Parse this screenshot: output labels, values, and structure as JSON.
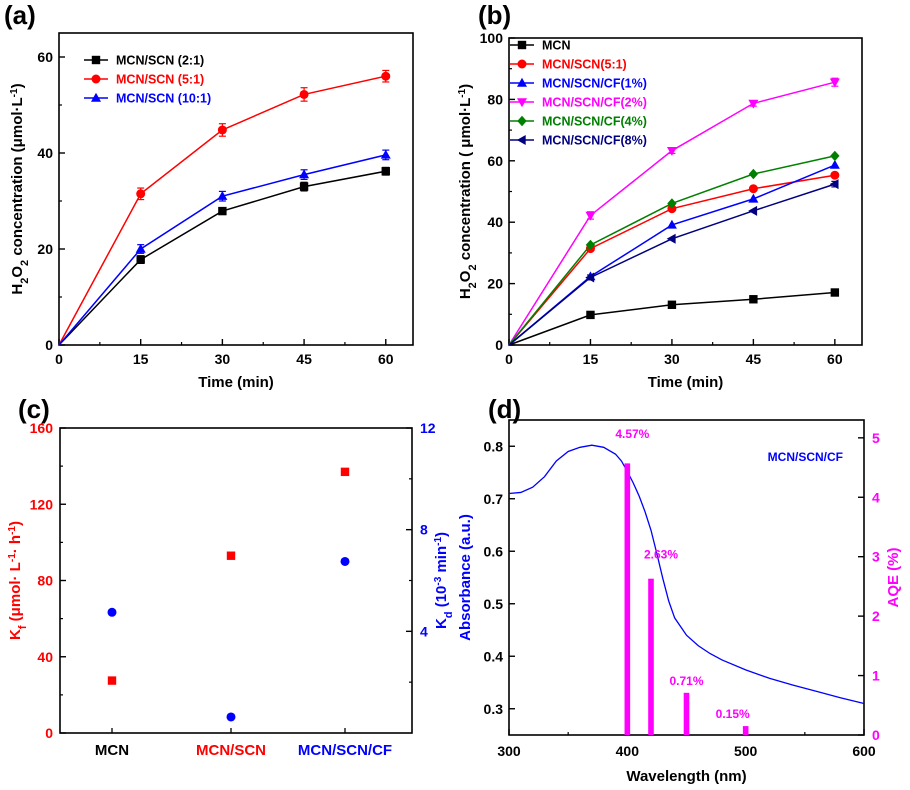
{
  "figure_labels": {
    "a": "(a)",
    "b": "(b)",
    "c": "(c)",
    "d": "(d)"
  },
  "colors": {
    "black": "#000000",
    "red": "#ff0000",
    "blue": "#0000ff",
    "magenta": "#ff00ff",
    "green": "#008000",
    "navy": "#000080"
  },
  "chart_data": [
    {
      "id": "a",
      "type": "line",
      "title": "(a)",
      "xlabel": "Time (min)",
      "ylabel_parts": [
        "H",
        "2",
        "O",
        "2",
        " concentration (μmol·L",
        "-1",
        ")"
      ],
      "x": [
        0,
        15,
        30,
        45,
        60
      ],
      "xlim": [
        0,
        65
      ],
      "ylim": [
        0,
        65
      ],
      "xticks": [
        0,
        15,
        30,
        45,
        60
      ],
      "yticks": [
        0,
        20,
        40,
        60
      ],
      "legend_position": "top-left",
      "series": [
        {
          "name": "MCN/SCN (2:1)",
          "color": "#000000",
          "marker": "square",
          "values": [
            0,
            17.8,
            27.9,
            33.0,
            36.2
          ],
          "errors": [
            0,
            0.8,
            0.7,
            0.9,
            0.8
          ]
        },
        {
          "name": "MCN/SCN (5:1)",
          "color": "#ff0000",
          "marker": "circle",
          "values": [
            0,
            31.5,
            44.8,
            52.2,
            56.0
          ],
          "errors": [
            0,
            1.2,
            1.3,
            1.4,
            1.2
          ]
        },
        {
          "name": "MCN/SCN (10:1)",
          "color": "#0000ff",
          "marker": "triangle-up",
          "values": [
            0,
            20.0,
            31.0,
            35.5,
            39.6
          ],
          "errors": [
            0,
            0.9,
            1.0,
            1.0,
            1.0
          ]
        }
      ]
    },
    {
      "id": "b",
      "type": "line",
      "title": "(b)",
      "xlabel": "Time (min)",
      "ylabel_parts": [
        "H",
        "2",
        "O",
        "2",
        " concentration ( μmol·L",
        "-1",
        ")"
      ],
      "x": [
        0,
        15,
        30,
        45,
        60
      ],
      "xlim": [
        0,
        65
      ],
      "ylim": [
        0,
        100
      ],
      "xticks": [
        0,
        15,
        30,
        45,
        60
      ],
      "yticks": [
        0,
        20,
        40,
        60,
        80,
        100
      ],
      "legend_position": "top-left",
      "series": [
        {
          "name": "MCN",
          "color": "#000000",
          "marker": "square",
          "values": [
            0,
            9.8,
            13.1,
            14.9,
            17.1
          ],
          "errors": [
            0,
            0,
            0,
            0,
            0
          ]
        },
        {
          "name": "MCN/SCN(5:1)",
          "color": "#ff0000",
          "marker": "circle",
          "values": [
            0,
            31.4,
            44.4,
            50.9,
            55.3
          ],
          "errors": [
            0,
            0,
            0,
            0,
            0
          ]
        },
        {
          "name": "MCN/SCN/CF(1%)",
          "color": "#0000ff",
          "marker": "triangle-up",
          "values": [
            0,
            22.3,
            39.1,
            47.6,
            58.6
          ],
          "errors": [
            0,
            0,
            0,
            0,
            0
          ]
        },
        {
          "name": "MCN/SCN/CF(2%)",
          "color": "#ff00ff",
          "marker": "triangle-down",
          "values": [
            0,
            42.2,
            63.3,
            78.7,
            85.6
          ],
          "errors": [
            0,
            1.2,
            0.9,
            0.9,
            1.3
          ]
        },
        {
          "name": "MCN/SCN/CF(4%)",
          "color": "#008000",
          "marker": "diamond",
          "values": [
            0,
            32.6,
            46.1,
            55.7,
            61.6
          ],
          "errors": [
            0,
            0,
            0,
            0,
            0
          ]
        },
        {
          "name": "MCN/SCN/CF(8%)",
          "color": "#000080",
          "marker": "triangle-left",
          "values": [
            0,
            22.0,
            34.6,
            43.7,
            52.4
          ],
          "errors": [
            0,
            0.8,
            0,
            0,
            0.9
          ]
        }
      ]
    },
    {
      "id": "c",
      "type": "scatter",
      "title": "(c)",
      "categories": [
        "MCN",
        "MCN/SCN",
        "MCN/SCN/CF"
      ],
      "category_colors": [
        "#000000",
        "#ff0000",
        "#0000ff"
      ],
      "left_axis": {
        "ylabel_parts": [
          "K",
          "f",
          " (μmol· L",
          "-1",
          "· h",
          "-1",
          ")"
        ],
        "ylim": [
          0,
          160
        ],
        "yticks": [
          0,
          40,
          80,
          120,
          160
        ],
        "color": "#ff0000"
      },
      "right_axis": {
        "ylabel_parts": [
          "K",
          "d",
          " (10",
          "-3",
          " min",
          "-1",
          ")"
        ],
        "ylim": [
          0,
          12
        ],
        "yticks": [
          4,
          8,
          12
        ],
        "color": "#0000ff"
      },
      "series": [
        {
          "name": "Kf",
          "axis": "left",
          "color": "#ff0000",
          "marker": "square",
          "values": [
            27.5,
            93.0,
            137.0
          ]
        },
        {
          "name": "Kd",
          "axis": "right",
          "color": "#0000ff",
          "marker": "circle",
          "values": [
            4.75,
            0.63,
            6.75
          ]
        }
      ]
    },
    {
      "id": "d",
      "type": "line+bar",
      "title": "(d)",
      "xlabel": "Wavelength (nm)",
      "annotation": "MCN/SCN/CF",
      "xlim": [
        300,
        600
      ],
      "xticks": [
        300,
        400,
        500,
        600
      ],
      "left_axis": {
        "ylabel": "Absorbance (a.u.)",
        "ylim": [
          0.25,
          0.85
        ],
        "yticks": [
          0.3,
          0.4,
          0.5,
          0.6,
          0.7,
          0.8
        ],
        "color": "#0000ff"
      },
      "right_axis": {
        "ylabel": "AQE (%)",
        "ylim": [
          0,
          5.3
        ],
        "yticks": [
          0,
          1,
          2,
          3,
          4,
          5
        ],
        "color": "#ff00ff"
      },
      "absorbance": {
        "color": "#0000ff",
        "x": [
          300,
          310,
          320,
          330,
          340,
          350,
          360,
          370,
          380,
          390,
          395,
          400,
          405,
          410,
          415,
          420,
          425,
          430,
          435,
          440,
          450,
          460,
          470,
          480,
          500,
          520,
          540,
          560,
          580,
          600
        ],
        "y": [
          0.71,
          0.712,
          0.722,
          0.742,
          0.772,
          0.79,
          0.798,
          0.802,
          0.798,
          0.785,
          0.772,
          0.752,
          0.73,
          0.705,
          0.675,
          0.64,
          0.595,
          0.548,
          0.505,
          0.473,
          0.44,
          0.42,
          0.405,
          0.393,
          0.374,
          0.358,
          0.345,
          0.333,
          0.321,
          0.31
        ]
      },
      "aqe": {
        "color": "#ff00ff",
        "x": [
          400,
          420,
          450,
          500
        ],
        "values": [
          4.57,
          2.63,
          0.71,
          0.15
        ],
        "labels": [
          "4.57%",
          "2.63%",
          "0.71%",
          "0.15%"
        ]
      }
    }
  ]
}
